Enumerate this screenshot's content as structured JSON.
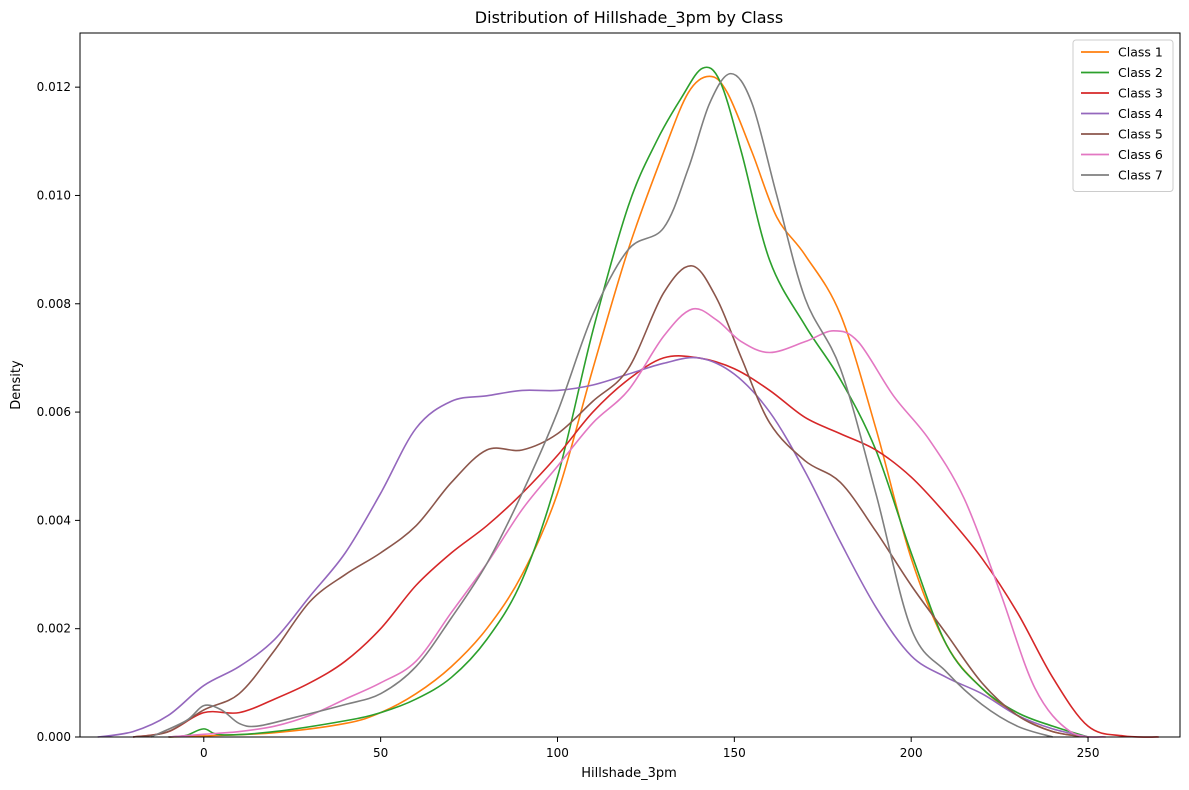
{
  "chart_data": {
    "type": "line",
    "title": "Distribution of Hillshade_3pm by Class",
    "xlabel": "Hillshade_3pm",
    "ylabel": "Density",
    "xlim": [
      -35,
      276
    ],
    "ylim": [
      0,
      0.013
    ],
    "xticks": [
      0,
      50,
      100,
      150,
      200,
      250
    ],
    "xtick_labels": [
      "0",
      "50",
      "100",
      "150",
      "200",
      "250"
    ],
    "yticks": [
      0,
      0.002,
      0.004,
      0.006,
      0.008,
      0.01,
      0.012
    ],
    "ytick_labels": [
      "0.000",
      "0.002",
      "0.004",
      "0.006",
      "0.008",
      "0.010",
      "0.012"
    ],
    "grid": false,
    "legend_position": "upper right",
    "series": [
      {
        "name": "Class 1",
        "color": "#ff7f0e",
        "points": [
          [
            -10,
            0
          ],
          [
            0,
            2e-05
          ],
          [
            20,
            8e-05
          ],
          [
            40,
            0.00025
          ],
          [
            50,
            0.00045
          ],
          [
            60,
            0.0008
          ],
          [
            70,
            0.0013
          ],
          [
            80,
            0.002
          ],
          [
            90,
            0.003
          ],
          [
            100,
            0.0045
          ],
          [
            110,
            0.0068
          ],
          [
            120,
            0.009
          ],
          [
            130,
            0.0108
          ],
          [
            137,
            0.0119
          ],
          [
            143,
            0.0122
          ],
          [
            148,
            0.0119
          ],
          [
            155,
            0.0108
          ],
          [
            162,
            0.0096
          ],
          [
            170,
            0.0089
          ],
          [
            180,
            0.0078
          ],
          [
            190,
            0.0057
          ],
          [
            200,
            0.0033
          ],
          [
            210,
            0.0017
          ],
          [
            220,
            0.0009
          ],
          [
            230,
            0.0004
          ],
          [
            240,
            0.0001
          ],
          [
            250,
            0
          ]
        ]
      },
      {
        "name": "Class 2",
        "color": "#2ca02c",
        "points": [
          [
            -10,
            0
          ],
          [
            -5,
            3e-05
          ],
          [
            0,
            0.00015
          ],
          [
            5,
            4e-05
          ],
          [
            20,
            0.0001
          ],
          [
            40,
            0.0003
          ],
          [
            50,
            0.00045
          ],
          [
            60,
            0.0007
          ],
          [
            70,
            0.0011
          ],
          [
            80,
            0.0018
          ],
          [
            90,
            0.0029
          ],
          [
            100,
            0.0048
          ],
          [
            110,
            0.0075
          ],
          [
            120,
            0.0098
          ],
          [
            128,
            0.011
          ],
          [
            135,
            0.0118
          ],
          [
            141,
            0.01235
          ],
          [
            146,
            0.0121
          ],
          [
            152,
            0.0108
          ],
          [
            160,
            0.0088
          ],
          [
            170,
            0.0076
          ],
          [
            180,
            0.0066
          ],
          [
            190,
            0.0053
          ],
          [
            200,
            0.0034
          ],
          [
            210,
            0.0017
          ],
          [
            220,
            0.0009
          ],
          [
            230,
            0.00045
          ],
          [
            240,
            0.0002
          ],
          [
            250,
            0
          ]
        ]
      },
      {
        "name": "Class 3",
        "color": "#d62728",
        "points": [
          [
            -20,
            0
          ],
          [
            -10,
            0.0001
          ],
          [
            0,
            0.00045
          ],
          [
            10,
            0.00045
          ],
          [
            20,
            0.0007
          ],
          [
            30,
            0.001
          ],
          [
            40,
            0.0014
          ],
          [
            50,
            0.002
          ],
          [
            60,
            0.0028
          ],
          [
            70,
            0.0034
          ],
          [
            80,
            0.0039
          ],
          [
            90,
            0.0045
          ],
          [
            100,
            0.0052
          ],
          [
            110,
            0.006
          ],
          [
            120,
            0.0066
          ],
          [
            130,
            0.007
          ],
          [
            140,
            0.007
          ],
          [
            150,
            0.0068
          ],
          [
            160,
            0.0064
          ],
          [
            170,
            0.0059
          ],
          [
            180,
            0.0056
          ],
          [
            190,
            0.0053
          ],
          [
            200,
            0.0048
          ],
          [
            210,
            0.0041
          ],
          [
            220,
            0.0033
          ],
          [
            230,
            0.0023
          ],
          [
            240,
            0.0011
          ],
          [
            250,
            0.0002
          ],
          [
            260,
            2e-05
          ],
          [
            270,
            0
          ]
        ]
      },
      {
        "name": "Class 4",
        "color": "#9467bd",
        "points": [
          [
            -30,
            0
          ],
          [
            -20,
            0.0001
          ],
          [
            -10,
            0.0004
          ],
          [
            0,
            0.00095
          ],
          [
            10,
            0.0013
          ],
          [
            20,
            0.0018
          ],
          [
            30,
            0.0026
          ],
          [
            40,
            0.0034
          ],
          [
            50,
            0.0045
          ],
          [
            60,
            0.0057
          ],
          [
            70,
            0.0062
          ],
          [
            80,
            0.0063
          ],
          [
            90,
            0.0064
          ],
          [
            100,
            0.0064
          ],
          [
            110,
            0.0065
          ],
          [
            120,
            0.0067
          ],
          [
            130,
            0.0069
          ],
          [
            140,
            0.007
          ],
          [
            150,
            0.0067
          ],
          [
            160,
            0.006
          ],
          [
            170,
            0.0049
          ],
          [
            180,
            0.0036
          ],
          [
            190,
            0.0024
          ],
          [
            200,
            0.0015
          ],
          [
            210,
            0.0011
          ],
          [
            220,
            0.0008
          ],
          [
            230,
            0.0004
          ],
          [
            240,
            0.00015
          ],
          [
            250,
            0
          ]
        ]
      },
      {
        "name": "Class 5",
        "color": "#8c564b",
        "points": [
          [
            -20,
            0
          ],
          [
            -10,
            0.0001
          ],
          [
            0,
            0.0005
          ],
          [
            10,
            0.0008
          ],
          [
            20,
            0.0016
          ],
          [
            30,
            0.0025
          ],
          [
            40,
            0.003
          ],
          [
            50,
            0.0034
          ],
          [
            60,
            0.0039
          ],
          [
            70,
            0.0047
          ],
          [
            80,
            0.0053
          ],
          [
            90,
            0.0053
          ],
          [
            100,
            0.0056
          ],
          [
            110,
            0.0062
          ],
          [
            120,
            0.0068
          ],
          [
            130,
            0.0082
          ],
          [
            138,
            0.0087
          ],
          [
            145,
            0.0081
          ],
          [
            152,
            0.007
          ],
          [
            160,
            0.0058
          ],
          [
            170,
            0.0051
          ],
          [
            180,
            0.0047
          ],
          [
            190,
            0.0038
          ],
          [
            200,
            0.0028
          ],
          [
            210,
            0.0019
          ],
          [
            220,
            0.001
          ],
          [
            230,
            0.0004
          ],
          [
            240,
            0.0001
          ],
          [
            250,
            0
          ]
        ]
      },
      {
        "name": "Class 6",
        "color": "#e377c2",
        "points": [
          [
            -10,
            0
          ],
          [
            0,
            5e-05
          ],
          [
            10,
            0.0001
          ],
          [
            20,
            0.0002
          ],
          [
            30,
            0.0004
          ],
          [
            40,
            0.0007
          ],
          [
            50,
            0.001
          ],
          [
            60,
            0.0014
          ],
          [
            70,
            0.0023
          ],
          [
            80,
            0.0032
          ],
          [
            90,
            0.0042
          ],
          [
            100,
            0.005
          ],
          [
            110,
            0.0058
          ],
          [
            120,
            0.0064
          ],
          [
            130,
            0.0074
          ],
          [
            138,
            0.0079
          ],
          [
            145,
            0.0077
          ],
          [
            152,
            0.0073
          ],
          [
            160,
            0.0071
          ],
          [
            170,
            0.0073
          ],
          [
            178,
            0.0075
          ],
          [
            185,
            0.0073
          ],
          [
            195,
            0.0063
          ],
          [
            205,
            0.0055
          ],
          [
            215,
            0.0044
          ],
          [
            225,
            0.0027
          ],
          [
            235,
            0.0009
          ],
          [
            245,
            0.0001
          ],
          [
            255,
            0
          ]
        ]
      },
      {
        "name": "Class 7",
        "color": "#7f7f7f",
        "points": [
          [
            -15,
            0
          ],
          [
            -5,
            0.0003
          ],
          [
            0,
            0.00058
          ],
          [
            5,
            0.0005
          ],
          [
            10,
            0.00025
          ],
          [
            15,
            0.0002
          ],
          [
            25,
            0.00035
          ],
          [
            40,
            0.0006
          ],
          [
            50,
            0.0008
          ],
          [
            60,
            0.0013
          ],
          [
            70,
            0.0022
          ],
          [
            80,
            0.0032
          ],
          [
            90,
            0.0045
          ],
          [
            100,
            0.006
          ],
          [
            110,
            0.0078
          ],
          [
            120,
            0.009
          ],
          [
            130,
            0.0094
          ],
          [
            137,
            0.0105
          ],
          [
            143,
            0.0117
          ],
          [
            149,
            0.01225
          ],
          [
            155,
            0.0117
          ],
          [
            162,
            0.01
          ],
          [
            170,
            0.0081
          ],
          [
            180,
            0.0068
          ],
          [
            190,
            0.0045
          ],
          [
            200,
            0.002
          ],
          [
            210,
            0.0012
          ],
          [
            220,
            0.0006
          ],
          [
            230,
            0.0002
          ],
          [
            240,
            0
          ]
        ]
      }
    ]
  }
}
